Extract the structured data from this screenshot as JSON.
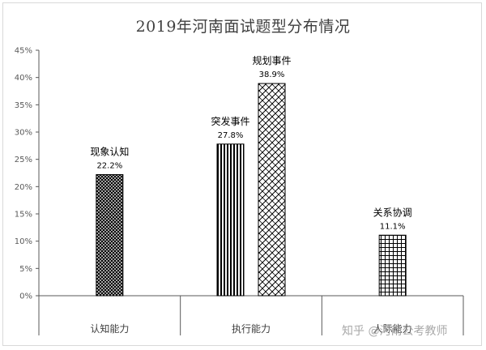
{
  "watermark": "知乎 @河南公考教师",
  "chart_data": {
    "type": "bar",
    "title": "2019年河南面试题型分布情况",
    "xlabel": "",
    "ylabel": "",
    "ylim": [
      0,
      45
    ],
    "yticks": [
      "0%",
      "5%",
      "10%",
      "15%",
      "20%",
      "25%",
      "30%",
      "35%",
      "40%",
      "45%"
    ],
    "grid": false,
    "categories": [
      "认知能力",
      "执行能力",
      "人际能力"
    ],
    "bars": [
      {
        "category": "认知能力",
        "name": "现象认知",
        "value": 22.2,
        "label": "22.2%",
        "pattern": "crosshatch"
      },
      {
        "category": "执行能力",
        "name": "突发事件",
        "value": 27.8,
        "label": "27.8%",
        "pattern": "vertical"
      },
      {
        "category": "执行能力",
        "name": "规划事件",
        "value": 38.9,
        "label": "38.9%",
        "pattern": "diagonal-brick"
      },
      {
        "category": "人际能力",
        "name": "关系协调",
        "value": 11.1,
        "label": "11.1%",
        "pattern": "grid"
      }
    ]
  }
}
